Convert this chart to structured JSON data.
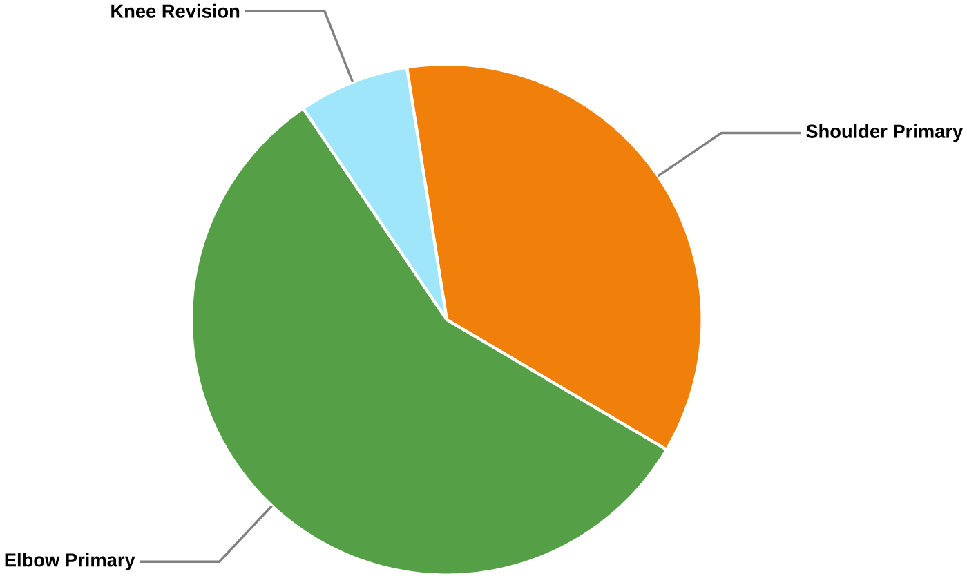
{
  "chart_data": {
    "type": "pie",
    "categories": [
      "Shoulder Primary",
      "Elbow Primary",
      "Knee Revision"
    ],
    "values": [
      36,
      57,
      7
    ],
    "colors": [
      "#f0800a",
      "#55a046",
      "#a0e6fa"
    ]
  }
}
